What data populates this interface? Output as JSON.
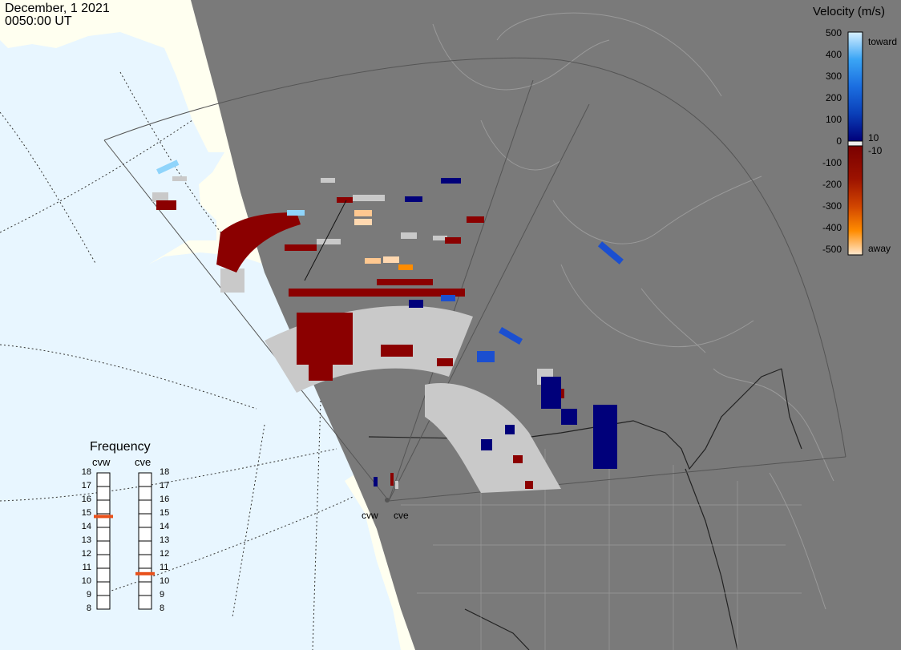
{
  "header": {
    "date": "December, 1 2021",
    "time": "0050:00 UT"
  },
  "colorbar": {
    "title": "Velocity (m/s)",
    "toward_label": "toward",
    "away_label": "away",
    "ticks": [
      "500",
      "400",
      "300",
      "200",
      "100",
      "0",
      "-100",
      "-200",
      "-300",
      "-400",
      "-500"
    ],
    "threshold_pos": "10",
    "threshold_neg": "-10",
    "colors_toward": [
      "#d8f0ff",
      "#8fd4fb",
      "#3aa5f5",
      "#1b6ee0",
      "#0a3fb8",
      "#00007a"
    ],
    "colors_away": [
      "#7a0000",
      "#9c1200",
      "#bf3300",
      "#e05a00",
      "#ff8c00",
      "#ffc890",
      "#ffe8cf"
    ]
  },
  "frequency": {
    "title": "Frequency",
    "radars": [
      {
        "code": "cvw",
        "value_mhz": 14.8
      },
      {
        "code": "cve",
        "value_mhz": 10.6
      }
    ],
    "ticks": [
      "18",
      "17",
      "16",
      "15",
      "14",
      "13",
      "12",
      "11",
      "10",
      "9",
      "8"
    ],
    "marker_color": "#e8501a"
  },
  "sites": [
    {
      "code": "cvw"
    },
    {
      "code": "cve"
    }
  ],
  "map_colors": {
    "land_day": "#fffff0",
    "ocean_day": "#e8f6ff",
    "night": "#7a7a7a",
    "gs_scatter": "#c9c9c9",
    "grid_line": "#555555"
  }
}
